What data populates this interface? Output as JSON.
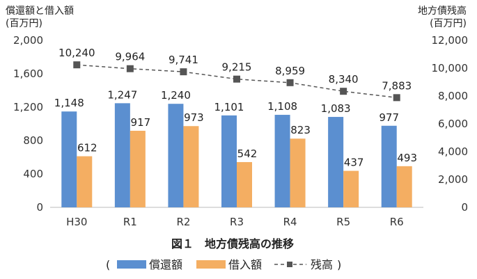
{
  "figure": {
    "caption": "図１　地方債残高の推移",
    "left_axis_title_line1": "償還額と借入額",
    "left_axis_title_line2": "(百万円)",
    "right_axis_title_line1": "地方債残高",
    "right_axis_title_line2": "(百万円)",
    "legend_open": "(",
    "legend_close": ")"
  },
  "chart_data": {
    "type": "bar",
    "categories": [
      "H30",
      "R1",
      "R2",
      "R3",
      "R4",
      "R5",
      "R6"
    ],
    "series": [
      {
        "name": "償還額",
        "axis": "left",
        "kind": "bar",
        "color": "#5b8fd0",
        "values": [
          1148,
          1247,
          1240,
          1101,
          1108,
          1083,
          977
        ],
        "labels": [
          "1,148",
          "1,247",
          "1,240",
          "1,101",
          "1,108",
          "1,083",
          "977"
        ]
      },
      {
        "name": "借入額",
        "axis": "left",
        "kind": "bar",
        "color": "#f4ae62",
        "values": [
          612,
          917,
          973,
          542,
          823,
          437,
          493
        ],
        "labels": [
          "612",
          "917",
          "973",
          "542",
          "823",
          "437",
          "493"
        ]
      },
      {
        "name": "残高",
        "axis": "right",
        "kind": "line",
        "style": "dashed",
        "marker": "square",
        "color": "#555555",
        "values": [
          10240,
          9964,
          9741,
          9215,
          8959,
          8340,
          7883
        ],
        "labels": [
          "10,240",
          "9,964",
          "9,741",
          "9,215",
          "8,959",
          "8,340",
          "7,883"
        ]
      }
    ],
    "y_left": {
      "min": 0,
      "max": 2000,
      "ticks": [
        0,
        400,
        800,
        1200,
        1600,
        2000
      ],
      "tick_labels": [
        "0",
        "400",
        "800",
        "1,200",
        "1,600",
        "2,000"
      ]
    },
    "y_right": {
      "min": 0,
      "max": 12000,
      "ticks": [
        0,
        2000,
        4000,
        6000,
        8000,
        10000,
        12000
      ],
      "tick_labels": [
        "0",
        "2,000",
        "4,000",
        "6,000",
        "8,000",
        "10,000",
        "12,000"
      ]
    },
    "grid": false,
    "legend": "bottom"
  }
}
